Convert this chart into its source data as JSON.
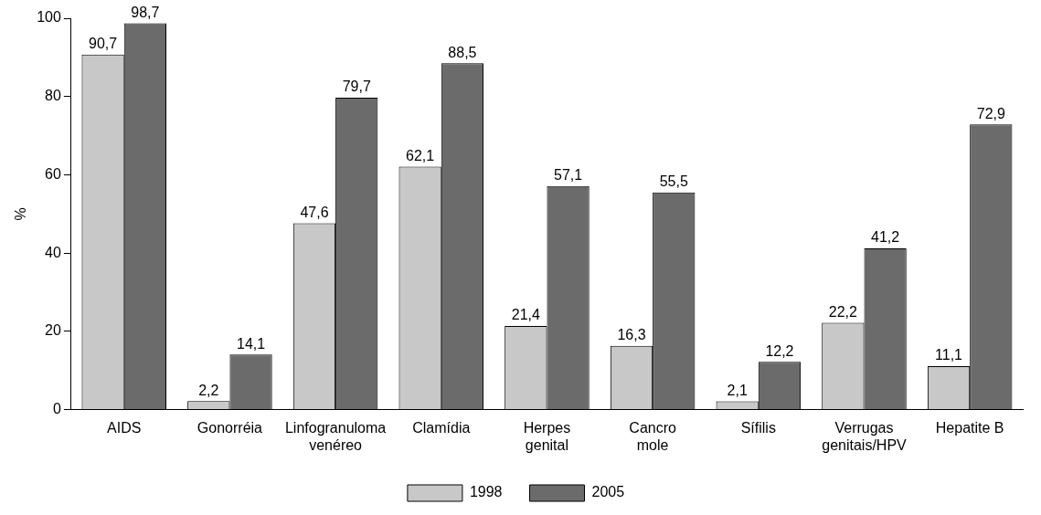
{
  "chart_data": {
    "type": "bar",
    "ylabel": "%",
    "categories": [
      "AIDS",
      "Gonorréia",
      "Linfogranuloma venéreo",
      "Clamídia",
      "Herpes genital",
      "Cancro mole",
      "Sífilis",
      "Verrugas genitais/HPV",
      "Hepatite B"
    ],
    "series": [
      {
        "name": "1998",
        "color": "#c8c8c8",
        "values": [
          90.7,
          2.2,
          47.6,
          62.1,
          21.4,
          16.3,
          2.1,
          22.2,
          11.1
        ],
        "value_labels": [
          "90,7",
          "2,2",
          "47,6",
          "62,1",
          "21,4",
          "16,3",
          "2,1",
          "22,2",
          "11,1"
        ]
      },
      {
        "name": "2005",
        "color": "#6b6b6b",
        "values": [
          98.7,
          14.1,
          79.7,
          88.5,
          57.1,
          55.5,
          12.2,
          41.2,
          72.9
        ],
        "value_labels": [
          "98,7",
          "14,1",
          "79,7",
          "88,5",
          "57,1",
          "55,5",
          "12,2",
          "41,2",
          "72,9"
        ]
      }
    ],
    "ylim": [
      0,
      100
    ],
    "yticks": [
      0,
      20,
      40,
      60,
      80,
      100
    ],
    "grid": false,
    "legend": "bottom"
  }
}
